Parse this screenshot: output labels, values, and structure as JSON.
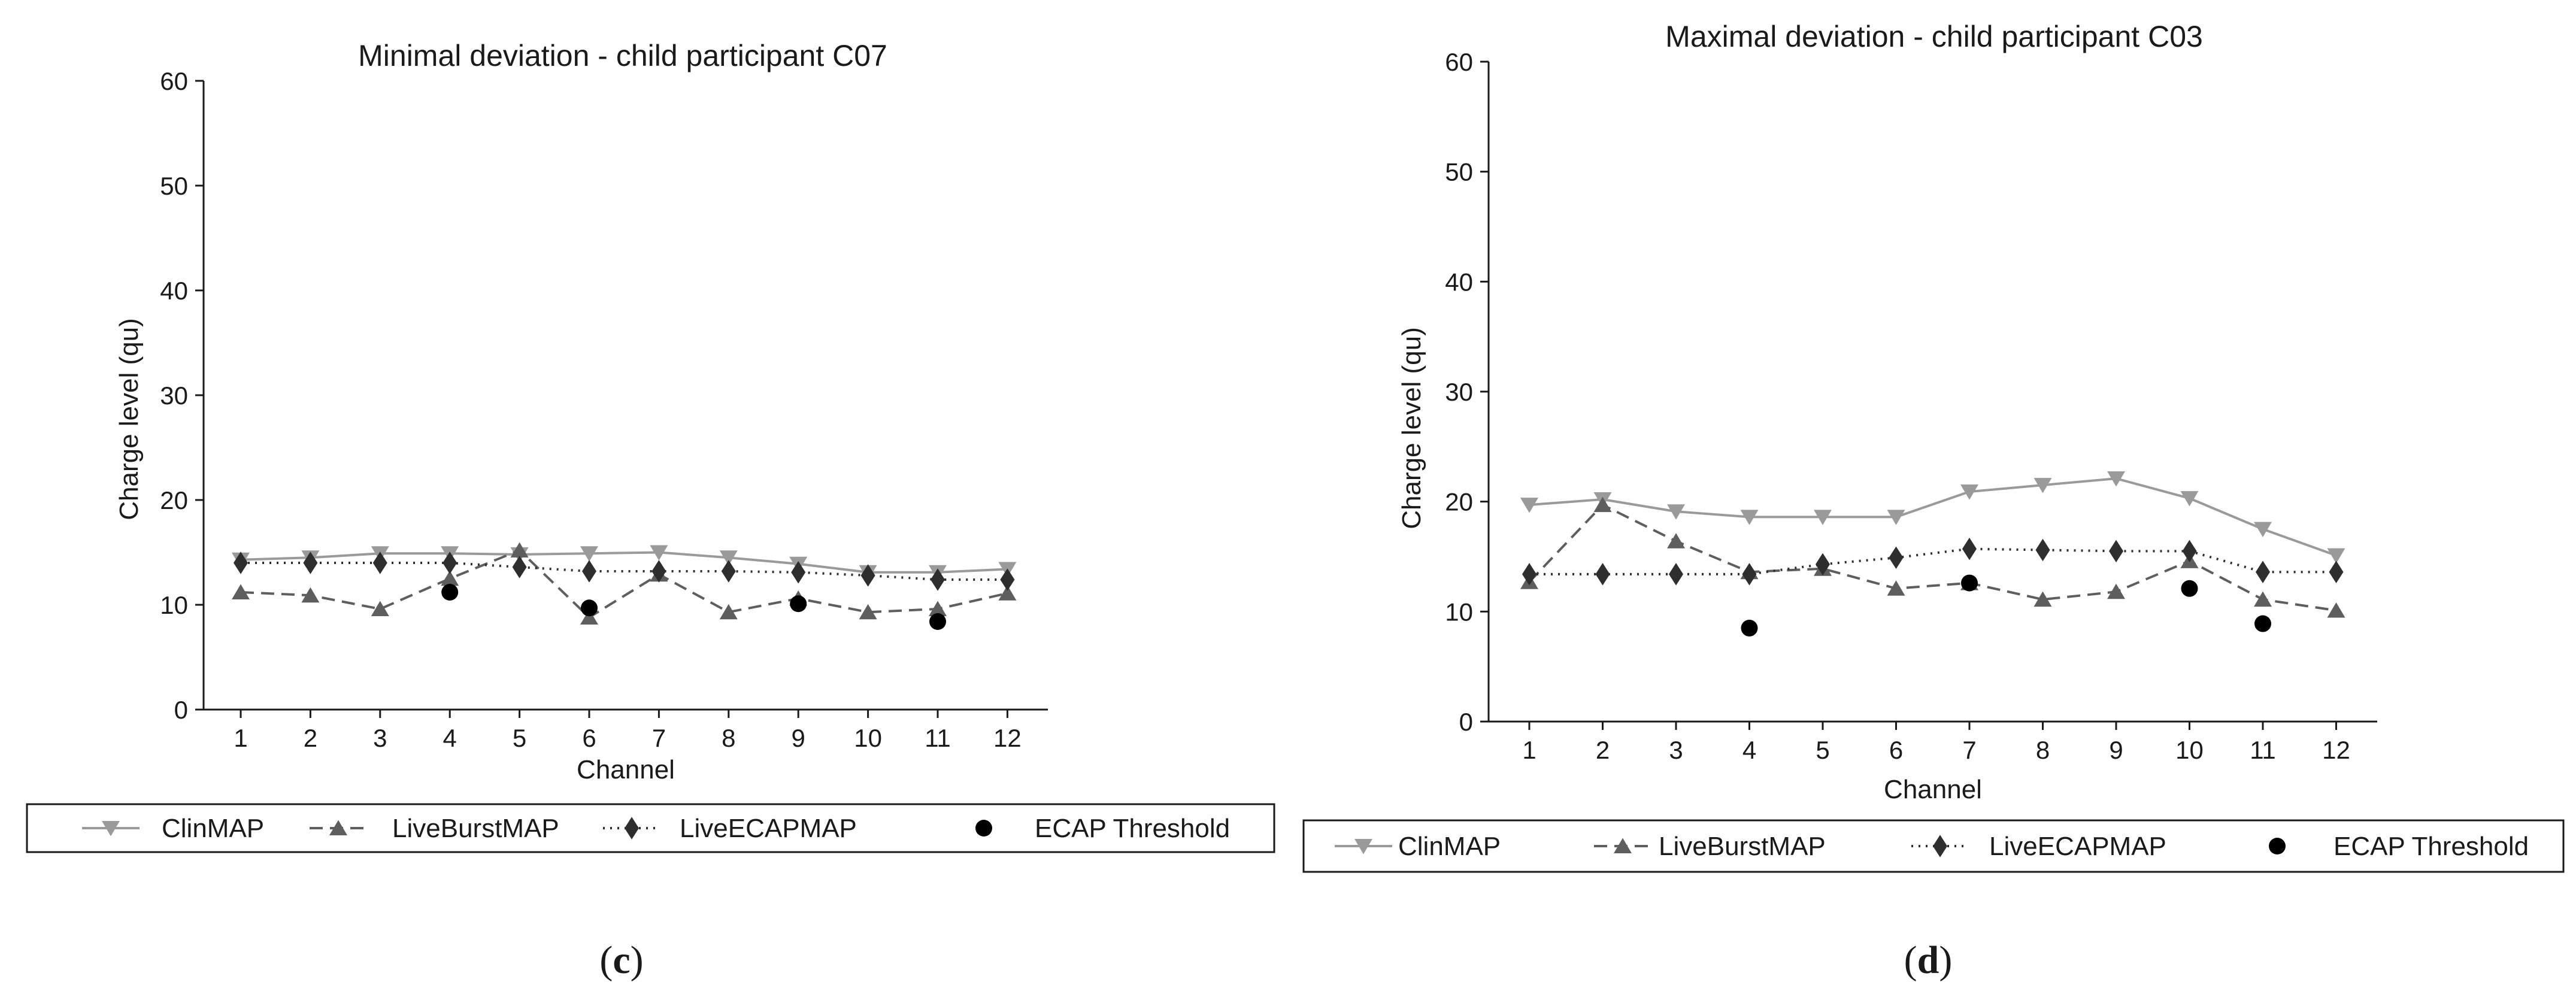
{
  "series_styles": {
    "ClinMAP": {
      "color": "#9a9a9a",
      "dash": "",
      "marker": "triangle-down"
    },
    "LiveBurstMAP": {
      "color": "#5e5e5e",
      "dash": "22,12",
      "marker": "triangle-up"
    },
    "LiveECAPMAP": {
      "color": "#2e2e2e",
      "dash": "3,9",
      "marker": "diamond"
    },
    "ECAP Threshold": {
      "color": "#000000",
      "dash": "none",
      "marker": "circle"
    }
  },
  "chart_data": [
    {
      "type": "line",
      "panel_label": "(c)",
      "panel_letter": "c",
      "title": "Minimal deviation - child participant C07",
      "xlabel": "Channel",
      "ylabel": "Charge level (qu)",
      "ylim": [
        0,
        60
      ],
      "yticks": [
        0,
        10,
        20,
        30,
        40,
        50,
        60
      ],
      "categories": [
        1,
        2,
        3,
        4,
        5,
        6,
        7,
        8,
        9,
        10,
        11,
        12
      ],
      "grid": false,
      "legend_position": "bottom",
      "series": [
        {
          "name": "ClinMAP",
          "values": [
            14.3,
            14.5,
            14.9,
            14.9,
            14.8,
            14.9,
            15.0,
            14.5,
            13.9,
            13.1,
            13.1,
            13.4
          ]
        },
        {
          "name": "LiveBurstMAP",
          "values": [
            11.2,
            10.9,
            9.6,
            12.5,
            15.2,
            8.8,
            12.9,
            9.3,
            10.6,
            9.3,
            9.6,
            11.1
          ]
        },
        {
          "name": "LiveECAPMAP",
          "values": [
            14.0,
            14.0,
            14.0,
            14.0,
            13.6,
            13.2,
            13.2,
            13.2,
            13.1,
            12.8,
            12.4,
            12.4
          ]
        },
        {
          "name": "ECAP Threshold",
          "x": [
            4,
            6,
            9,
            11
          ],
          "values": [
            11.2,
            9.7,
            10.1,
            8.4
          ]
        }
      ]
    },
    {
      "type": "line",
      "panel_label": "(d)",
      "panel_letter": "d",
      "title": "Maximal deviation - child participant C03",
      "xlabel": "Channel",
      "ylabel": "Charge level (qu)",
      "ylim": [
        0,
        60
      ],
      "yticks": [
        0,
        10,
        20,
        30,
        40,
        50,
        60
      ],
      "categories": [
        1,
        2,
        3,
        4,
        5,
        6,
        7,
        8,
        9,
        10,
        11,
        12
      ],
      "grid": false,
      "legend_position": "bottom",
      "series": [
        {
          "name": "ClinMAP",
          "values": [
            19.7,
            20.2,
            19.1,
            18.6,
            18.6,
            18.6,
            20.9,
            21.5,
            22.1,
            20.3,
            17.5,
            15.1
          ]
        },
        {
          "name": "LiveBurstMAP",
          "values": [
            12.7,
            19.7,
            16.4,
            13.6,
            13.9,
            12.1,
            12.6,
            11.1,
            11.8,
            14.6,
            11.1,
            10.1
          ]
        },
        {
          "name": "LiveECAPMAP",
          "values": [
            13.4,
            13.4,
            13.4,
            13.4,
            14.3,
            14.9,
            15.7,
            15.6,
            15.5,
            15.5,
            13.6,
            13.6
          ]
        },
        {
          "name": "ECAP Threshold",
          "x": [
            4,
            7,
            10,
            11
          ],
          "values": [
            8.5,
            12.6,
            12.1,
            8.9
          ]
        }
      ]
    }
  ]
}
